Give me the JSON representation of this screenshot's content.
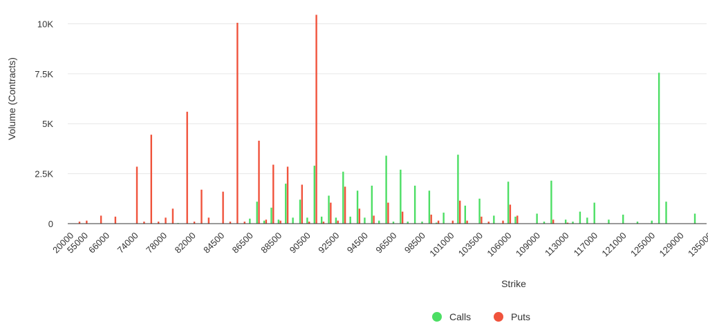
{
  "chart_data": {
    "type": "bar",
    "xlabel": "Strike",
    "ylabel": "Volume (Contracts)",
    "ylim": [
      0,
      10500
    ],
    "yticks": [
      {
        "value": 0,
        "label": "0"
      },
      {
        "value": 2500,
        "label": "2.5K"
      },
      {
        "value": 5000,
        "label": "5K"
      },
      {
        "value": 7500,
        "label": "7.5K"
      },
      {
        "value": 10000,
        "label": "10K"
      }
    ],
    "grid": true,
    "legend_position": "bottom-center",
    "colors": {
      "Calls": "#4cde64",
      "Puts": "#f0533c",
      "grid": "#e6e6e6",
      "axis": "#333333"
    },
    "xtick_labels": [
      {
        "label": "20000",
        "index": 0
      },
      {
        "label": "55000",
        "index": 2
      },
      {
        "label": "66000",
        "index": 5
      },
      {
        "label": "74000",
        "index": 9
      },
      {
        "label": "78000",
        "index": 13
      },
      {
        "label": "82000",
        "index": 17
      },
      {
        "label": "84500",
        "index": 21
      },
      {
        "label": "86500",
        "index": 25
      },
      {
        "label": "88500",
        "index": 29
      },
      {
        "label": "90500",
        "index": 33
      },
      {
        "label": "92500",
        "index": 37
      },
      {
        "label": "94500",
        "index": 41
      },
      {
        "label": "96500",
        "index": 45
      },
      {
        "label": "98500",
        "index": 49
      },
      {
        "label": "101000",
        "index": 53
      },
      {
        "label": "103500",
        "index": 57
      },
      {
        "label": "106000",
        "index": 61
      },
      {
        "label": "109000",
        "index": 65
      },
      {
        "label": "113000",
        "index": 69
      },
      {
        "label": "117000",
        "index": 73
      },
      {
        "label": "121000",
        "index": 77
      },
      {
        "label": "125000",
        "index": 81
      },
      {
        "label": "129000",
        "index": 85
      },
      {
        "label": "135000",
        "index": 89
      }
    ],
    "category_count": 89,
    "series": [
      {
        "name": "Calls",
        "values": [
          0,
          0,
          0,
          0,
          0,
          0,
          0,
          0,
          0,
          0,
          0,
          0,
          0,
          0,
          0,
          30,
          0,
          0,
          0,
          0,
          0,
          0,
          0,
          0,
          0,
          250,
          1100,
          150,
          800,
          200,
          2000,
          300,
          1200,
          300,
          2900,
          350,
          1400,
          300,
          2600,
          350,
          1650,
          300,
          1900,
          150,
          3400,
          100,
          2700,
          100,
          1900,
          100,
          1650,
          50,
          550,
          0,
          3450,
          900,
          0,
          1250,
          0,
          400,
          0,
          2100,
          350,
          0,
          0,
          500,
          100,
          2150,
          0,
          200,
          100,
          600,
          300,
          1050,
          0,
          200,
          0,
          450,
          0,
          100,
          0,
          150,
          7550,
          1100,
          0,
          0,
          0,
          500,
          0
        ]
      },
      {
        "name": "Puts",
        "values": [
          0,
          100,
          150,
          0,
          400,
          0,
          350,
          0,
          0,
          2850,
          100,
          4450,
          100,
          300,
          750,
          0,
          5600,
          100,
          1700,
          300,
          0,
          1600,
          100,
          10050,
          100,
          0,
          4150,
          200,
          2950,
          150,
          2850,
          0,
          1950,
          100,
          10450,
          100,
          1050,
          150,
          1850,
          0,
          750,
          0,
          400,
          0,
          1050,
          0,
          600,
          0,
          0,
          0,
          450,
          150,
          0,
          150,
          1150,
          150,
          0,
          350,
          100,
          0,
          150,
          950,
          400,
          0,
          0,
          0,
          0,
          200,
          0,
          50,
          0,
          0,
          0,
          0,
          0,
          0,
          0,
          0,
          0,
          0,
          0,
          0,
          0,
          0,
          0,
          0,
          0,
          0,
          0
        ]
      }
    ]
  }
}
